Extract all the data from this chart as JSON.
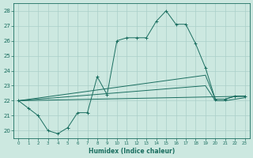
{
  "title": "",
  "xlabel": "Humidex (Indice chaleur)",
  "bg_color": "#cce8e0",
  "grid_color": "#aacfc8",
  "line_color": "#1a6e60",
  "xlim": [
    -0.5,
    23.5
  ],
  "ylim": [
    19.5,
    28.5
  ],
  "yticks": [
    20,
    21,
    22,
    23,
    24,
    25,
    26,
    27,
    28
  ],
  "xticks": [
    0,
    1,
    2,
    3,
    4,
    5,
    6,
    7,
    8,
    9,
    10,
    11,
    12,
    13,
    14,
    15,
    16,
    17,
    18,
    19,
    20,
    21,
    22,
    23
  ],
  "series": [
    {
      "x": [
        0,
        1,
        2,
        3,
        4,
        5,
        6,
        7,
        8,
        9,
        10,
        11,
        12,
        13,
        14,
        15,
        16,
        17,
        18,
        19,
        20,
        21,
        22,
        23
      ],
      "y": [
        22.0,
        21.5,
        21.0,
        20.0,
        19.8,
        20.2,
        21.2,
        21.2,
        23.6,
        22.4,
        26.0,
        26.2,
        26.2,
        26.2,
        27.3,
        28.0,
        27.1,
        27.1,
        25.8,
        24.2,
        22.1,
        22.1,
        22.3,
        22.3
      ],
      "marker": "+"
    },
    {
      "x": [
        0,
        23
      ],
      "y": [
        22.0,
        22.3
      ],
      "marker": null
    },
    {
      "x": [
        0,
        19,
        20,
        21,
        22,
        23
      ],
      "y": [
        22.0,
        23.7,
        22.1,
        22.1,
        22.3,
        22.3
      ],
      "marker": null
    },
    {
      "x": [
        0,
        19,
        20,
        21,
        22,
        23
      ],
      "y": [
        22.0,
        23.0,
        22.0,
        22.0,
        22.1,
        22.2
      ],
      "marker": null
    }
  ]
}
